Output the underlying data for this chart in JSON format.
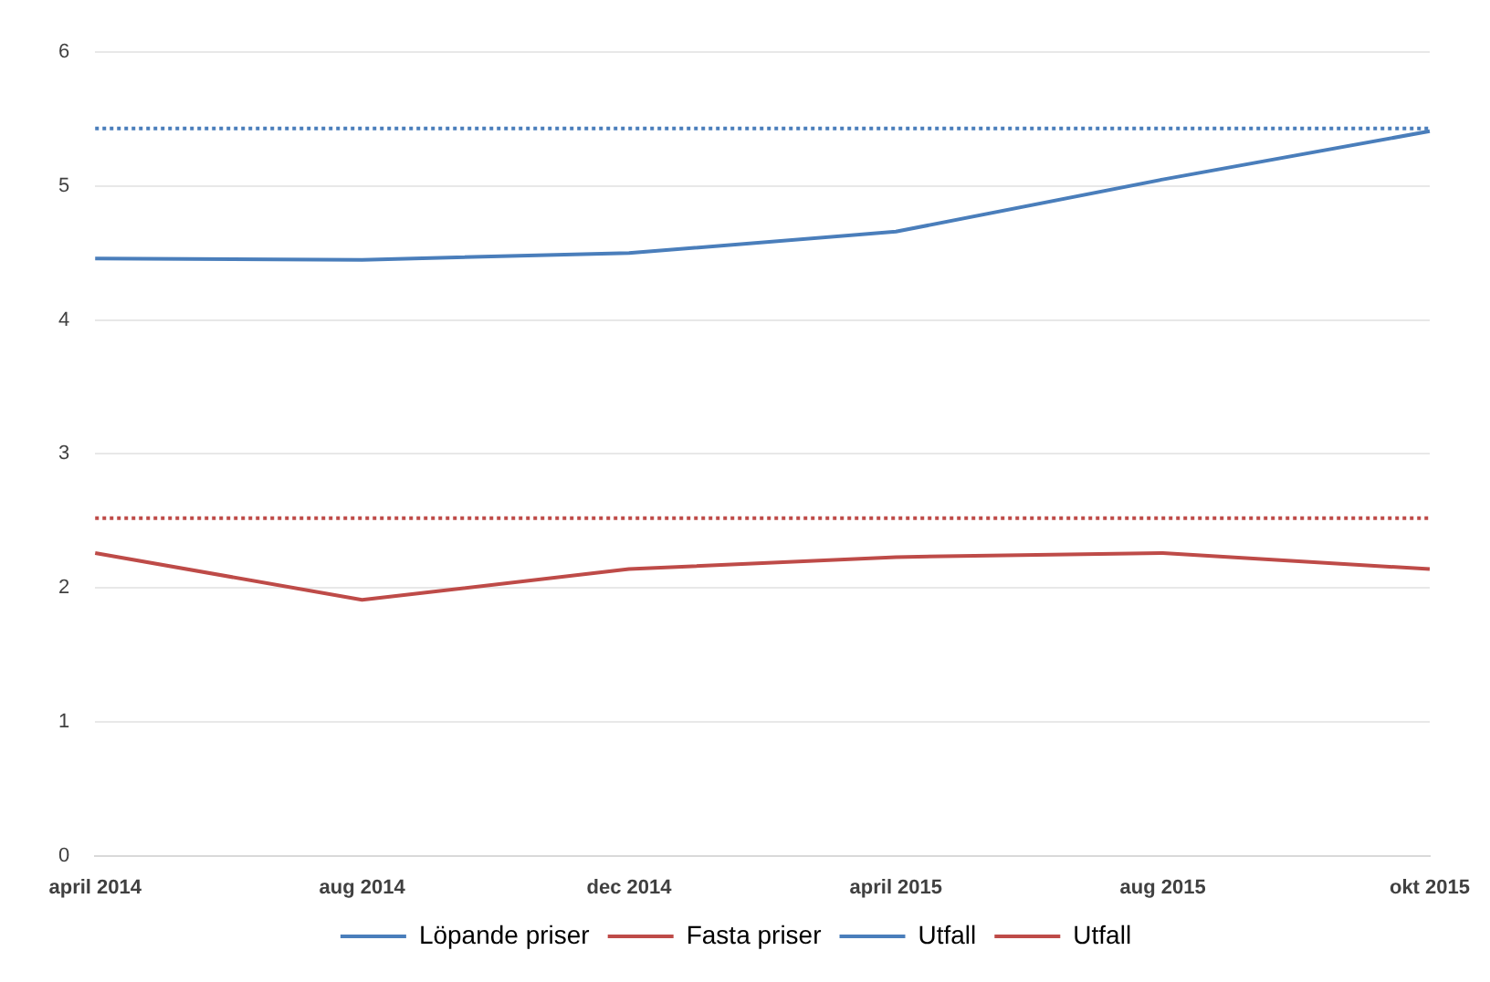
{
  "chart_data": {
    "type": "line",
    "categories": [
      "april 2014",
      "aug 2014",
      "dec 2014",
      "april 2015",
      "aug 2015",
      "okt 2015"
    ],
    "series": [
      {
        "name": "Löpande priser",
        "color": "#4a7ebb",
        "values": [
          4.46,
          4.45,
          4.5,
          4.66,
          5.05,
          5.41
        ]
      },
      {
        "name": "Fasta priser",
        "color": "#be4b48",
        "values": [
          2.26,
          1.91,
          2.14,
          2.23,
          2.26,
          2.14
        ]
      },
      {
        "name": "Utfall",
        "color": "#4a7ebb",
        "line_style": "dotted",
        "values": [
          5.43,
          5.43,
          5.43,
          5.43,
          5.43,
          5.43
        ]
      },
      {
        "name": "Utfall",
        "color": "#be4b48",
        "line_style": "dotted",
        "values": [
          2.52,
          2.52,
          2.52,
          2.52,
          2.52,
          2.52
        ]
      }
    ],
    "ylim": [
      0,
      6
    ],
    "yticks": [
      0,
      1,
      2,
      3,
      4,
      5,
      6
    ],
    "grid": "y",
    "legend": "bottom",
    "marker": "none",
    "line_style": "solid"
  }
}
